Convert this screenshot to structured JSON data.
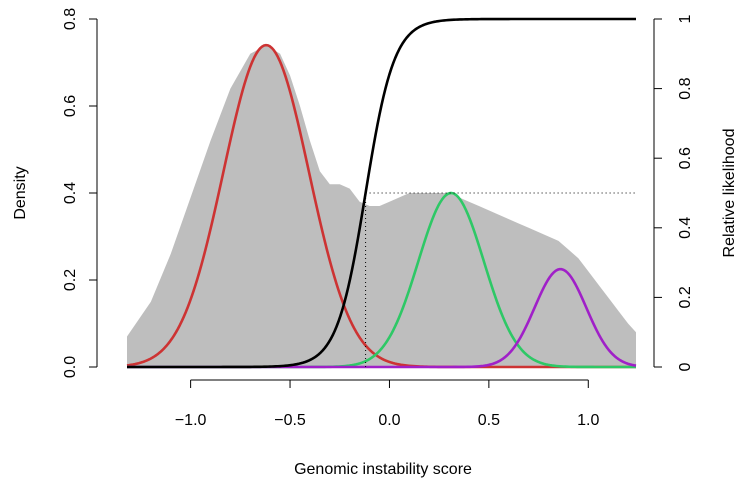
{
  "chart_data": {
    "type": "line",
    "xlabel": "Genomic instability score",
    "ylabel": "Density",
    "y2label": "Relative likelihood",
    "xlim": [
      -1.32,
      1.24
    ],
    "ylim": [
      0,
      0.8
    ],
    "y2lim": [
      0,
      1
    ],
    "grid": false,
    "x_ticks": [
      -1.0,
      -0.5,
      0.0,
      0.5,
      1.0
    ],
    "x_tick_labels": [
      "−1.0",
      "−0.5",
      "0.0",
      "0.5",
      "1.0"
    ],
    "y_ticks": [
      0.0,
      0.2,
      0.4,
      0.6,
      0.8
    ],
    "y_tick_labels": [
      "0.0",
      "0.2",
      "0.4",
      "0.6",
      "0.8"
    ],
    "y2_ticks": [
      0,
      0.2,
      0.4,
      0.6,
      0.8,
      1
    ],
    "y2_tick_labels": [
      "0",
      "0.2",
      "0.4",
      "0.6",
      "0.8",
      "1"
    ],
    "density_area": {
      "color": "#bebebe",
      "x": [
        -1.32,
        -1.2,
        -1.1,
        -1.0,
        -0.9,
        -0.8,
        -0.7,
        -0.62,
        -0.55,
        -0.5,
        -0.45,
        -0.4,
        -0.35,
        -0.3,
        -0.25,
        -0.2,
        -0.15,
        -0.1,
        -0.05,
        0.0,
        0.05,
        0.1,
        0.15,
        0.2,
        0.25,
        0.3,
        0.35,
        0.4,
        0.45,
        0.5,
        0.55,
        0.6,
        0.65,
        0.7,
        0.75,
        0.8,
        0.85,
        0.9,
        0.95,
        1.0,
        1.05,
        1.1,
        1.15,
        1.2,
        1.24
      ],
      "y": [
        0.07,
        0.15,
        0.26,
        0.39,
        0.52,
        0.64,
        0.72,
        0.74,
        0.72,
        0.67,
        0.6,
        0.52,
        0.45,
        0.42,
        0.42,
        0.41,
        0.38,
        0.37,
        0.37,
        0.38,
        0.39,
        0.4,
        0.4,
        0.4,
        0.4,
        0.4,
        0.39,
        0.38,
        0.37,
        0.36,
        0.35,
        0.34,
        0.33,
        0.32,
        0.31,
        0.3,
        0.29,
        0.27,
        0.25,
        0.22,
        0.19,
        0.16,
        0.13,
        0.1,
        0.08
      ]
    },
    "series": [
      {
        "type": "gaussian",
        "color": "#cd3333",
        "mean": -0.62,
        "sd": 0.215,
        "peak": 0.74,
        "axis": "left"
      },
      {
        "type": "gaussian",
        "color": "#2ec866",
        "mean": 0.31,
        "sd": 0.165,
        "peak": 0.4,
        "axis": "left"
      },
      {
        "type": "gaussian",
        "color": "#a020c8",
        "mean": 0.86,
        "sd": 0.13,
        "peak": 0.225,
        "axis": "left"
      },
      {
        "type": "logistic",
        "color": "#000000",
        "midpoint": -0.12,
        "scale": 0.072,
        "axis": "right"
      }
    ],
    "threshold_lines": [
      {
        "type": "vertical",
        "x": -0.12,
        "from_y": 0,
        "to_y2": 0.5,
        "style": "dotted"
      },
      {
        "type": "horizontal",
        "y2": 0.5,
        "from_x": -0.12,
        "to_x": 1.24,
        "style": "dotted"
      }
    ]
  }
}
